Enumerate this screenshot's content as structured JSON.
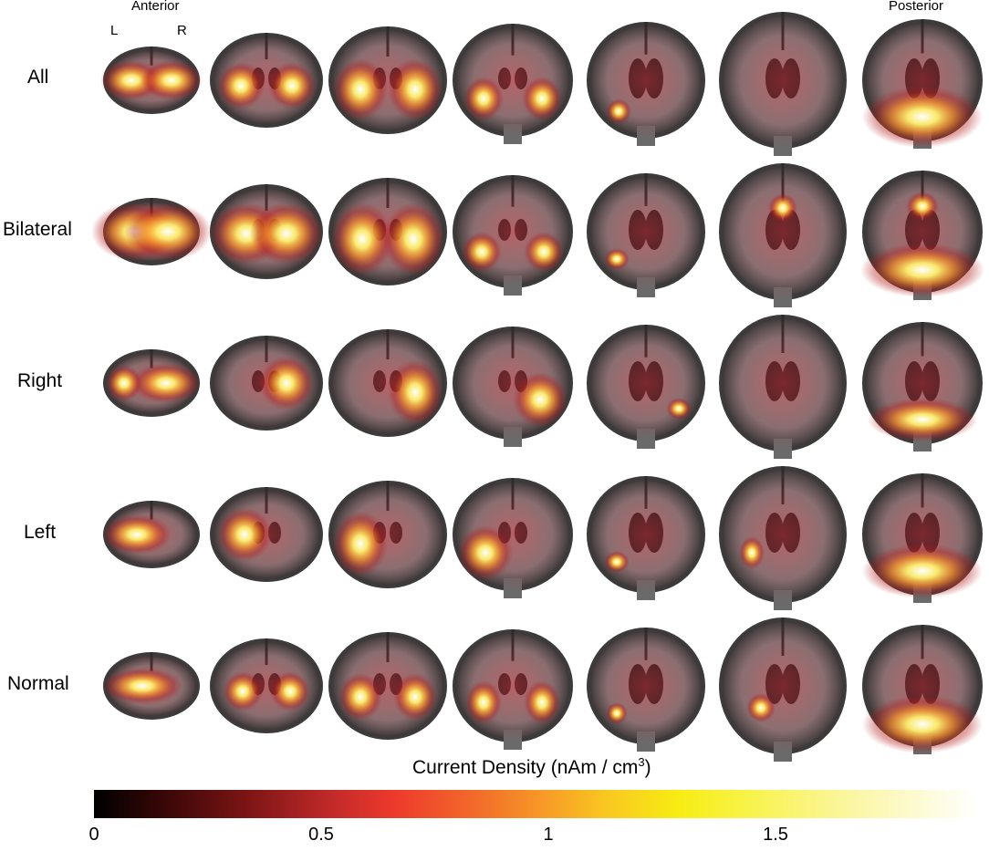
{
  "labels": {
    "anterior": "Anterior",
    "posterior": "Posterior",
    "left_hemisphere": "L",
    "right_hemisphere": "R"
  },
  "rows": [
    {
      "label": "All"
    },
    {
      "label": "Bilateral"
    },
    {
      "label": "Right"
    },
    {
      "label": "Left"
    },
    {
      "label": "Normal"
    }
  ],
  "colorbar": {
    "title": "Current Density (nAm / cm",
    "title_superscript": "3",
    "title_close": ")",
    "ticks": [
      "0",
      "0.5",
      "1",
      "1.5"
    ],
    "tick_values": [
      0,
      0.5,
      1,
      1.5
    ],
    "range": [
      0,
      1.95
    ],
    "colormap": [
      "#000000",
      "#7a1414",
      "#ee3a2c",
      "#f79b26",
      "#f7ec12",
      "#ffffff"
    ]
  },
  "overlay_colors": {
    "low": "#b41e1e",
    "mid": "#f58c28",
    "high": "#fff06e",
    "peak": "#ffffff"
  }
}
